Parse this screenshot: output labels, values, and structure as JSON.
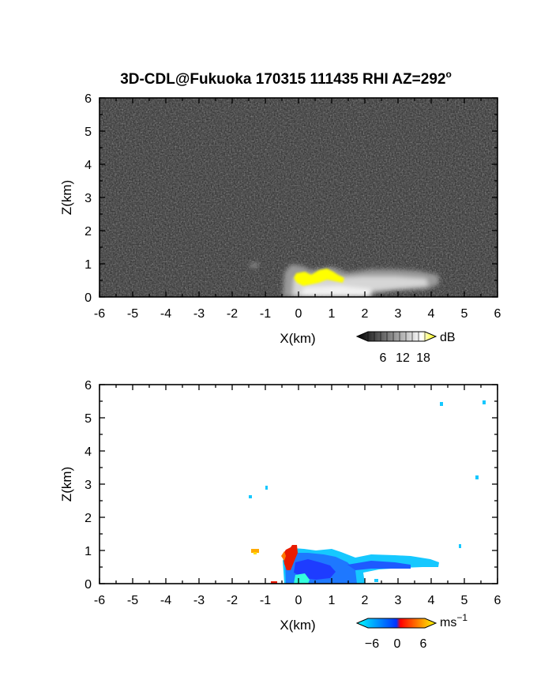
{
  "chart_data": [
    {
      "type": "heatmap",
      "title": "3D-CDL@Fukuoka 170315 111435 RHI AZ=292",
      "title_superscript": "o",
      "xlabel": "X(km)",
      "ylabel": "Z(km)",
      "xlim": [
        -6,
        6
      ],
      "ylim": [
        0,
        6
      ],
      "x_ticks": [
        "-6",
        "-5",
        "-4",
        "-3",
        "-2",
        "-1",
        "0",
        "1",
        "2",
        "3",
        "4",
        "5",
        "6"
      ],
      "y_ticks": [
        "0",
        "1",
        "2",
        "3",
        "4",
        "5",
        "6"
      ],
      "background": "noise, dark grey",
      "colorbar": {
        "unit": "dB",
        "ticks": [
          "6",
          "12",
          "18"
        ],
        "colors": [
          "#000000",
          "#ffffff",
          "#ffff00"
        ]
      },
      "features": [
        {
          "name": "near-surface backscatter (grey)",
          "x_range": [
            -1.3,
            4.3
          ],
          "z_range": [
            0.0,
            1.0
          ]
        },
        {
          "name": "strong echo > 18 dB (yellow)",
          "x_range": [
            -0.1,
            1.4
          ],
          "z_range": [
            0.35,
            0.9
          ]
        }
      ]
    },
    {
      "type": "heatmap",
      "xlabel": "X(km)",
      "ylabel": "Z(km)",
      "xlim": [
        -6,
        6
      ],
      "ylim": [
        0,
        6
      ],
      "x_ticks": [
        "-6",
        "-5",
        "-4",
        "-3",
        "-2",
        "-1",
        "0",
        "1",
        "2",
        "3",
        "4",
        "5",
        "6"
      ],
      "y_ticks": [
        "0",
        "1",
        "2",
        "3",
        "4",
        "5",
        "6"
      ],
      "colorbar": {
        "unit": "ms",
        "unit_exponent": "−1",
        "ticks": [
          "−6",
          "0",
          "6"
        ],
        "colors": [
          "#00ffff",
          "#0033ff",
          "#ff0000",
          "#ffff00"
        ]
      },
      "features": [
        {
          "name": "main velocity region (blue, about -5 ms-1)",
          "x_range": [
            -0.4,
            4.2
          ],
          "z_range": [
            0.0,
            1.0
          ]
        },
        {
          "name": "positive velocity patch (red)",
          "x_range": [
            -0.4,
            0.0
          ],
          "z_range": [
            0.6,
            1.1
          ]
        },
        {
          "name": "orange gate",
          "x": -1.3,
          "z": 1.0
        },
        {
          "name": "cyan gates",
          "points": [
            [
              -1.4,
              2.6
            ],
            [
              -0.9,
              2.85
            ],
            [
              1.5,
              0.2
            ],
            [
              4.3,
              5.4
            ],
            [
              4.9,
              1.1
            ],
            [
              5.4,
              3.2
            ],
            [
              5.7,
              5.45
            ]
          ]
        }
      ]
    }
  ]
}
